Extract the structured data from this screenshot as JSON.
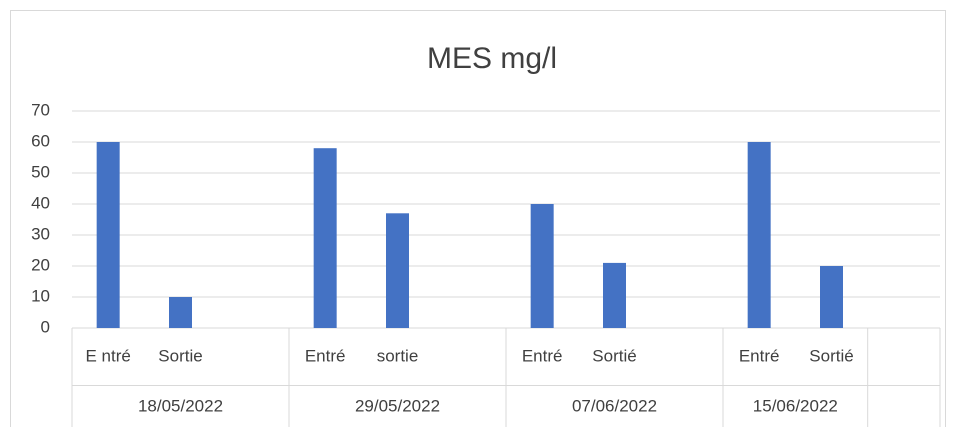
{
  "chart_data": {
    "type": "bar",
    "title": "MES mg/l",
    "groups": [
      {
        "label": "18/05/2022",
        "categories": [
          "E ntré",
          "Sortie",
          null
        ]
      },
      {
        "label": "29/05/2022",
        "categories": [
          "Entré",
          "sortie",
          null
        ]
      },
      {
        "label": "07/06/2022",
        "categories": [
          "Entré",
          "Sortié",
          null
        ]
      },
      {
        "label": "15/06/2022",
        "categories": [
          "Entré",
          "Sortié"
        ]
      },
      {
        "label": null,
        "categories": [
          null
        ]
      }
    ],
    "values": [
      60,
      10,
      null,
      58,
      37,
      null,
      40,
      21,
      null,
      60,
      20,
      null
    ],
    "color": "#4472c4",
    "ylim": [
      0,
      70
    ],
    "yticks": [
      0,
      10,
      20,
      30,
      40,
      50,
      60,
      70
    ],
    "grid": true
  }
}
